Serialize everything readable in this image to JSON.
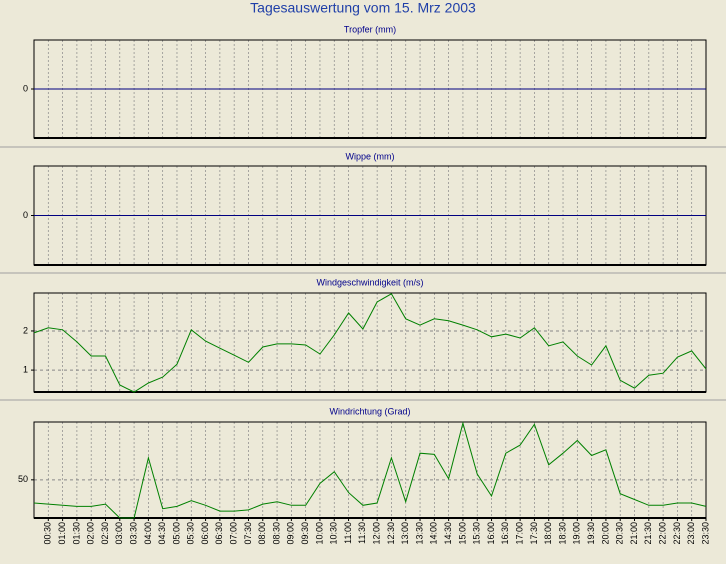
{
  "title": "Tagesauswertung vom 15. Mrz 2003",
  "chart_data": [
    {
      "type": "line",
      "title": "Tropfer (mm)",
      "color": "#000080",
      "ylim": [
        -1,
        1
      ],
      "yticks": [
        0
      ],
      "grid": true,
      "values": [
        0,
        0,
        0,
        0,
        0,
        0,
        0,
        0,
        0,
        0,
        0,
        0,
        0,
        0,
        0,
        0,
        0,
        0,
        0,
        0,
        0,
        0,
        0,
        0,
        0,
        0,
        0,
        0,
        0,
        0,
        0,
        0,
        0,
        0,
        0,
        0,
        0,
        0,
        0,
        0,
        0,
        0,
        0,
        0,
        0,
        0,
        0,
        0
      ]
    },
    {
      "type": "line",
      "title": "Wippe (mm)",
      "color": "#000080",
      "ylim": [
        -1,
        1
      ],
      "yticks": [
        0
      ],
      "grid": true,
      "values": [
        0,
        0,
        0,
        0,
        0,
        0,
        0,
        0,
        0,
        0,
        0,
        0,
        0,
        0,
        0,
        0,
        0,
        0,
        0,
        0,
        0,
        0,
        0,
        0,
        0,
        0,
        0,
        0,
        0,
        0,
        0,
        0,
        0,
        0,
        0,
        0,
        0,
        0,
        0,
        0,
        0,
        0,
        0,
        0,
        0,
        0,
        0,
        0
      ]
    },
    {
      "type": "line",
      "title": "Windgeschwindigkeit (m/s)",
      "color": "#008000",
      "ylim": [
        0.44,
        2.97
      ],
      "yticks": [
        1,
        2
      ],
      "grid": true,
      "values": [
        1.95,
        2.08,
        2.03,
        1.72,
        1.36,
        1.36,
        0.62,
        0.44,
        0.67,
        0.82,
        1.15,
        2.03,
        1.74,
        1.56,
        1.38,
        1.2,
        1.59,
        1.67,
        1.67,
        1.64,
        1.41,
        1.9,
        2.46,
        2.05,
        2.74,
        2.95,
        2.31,
        2.15,
        2.31,
        2.26,
        2.15,
        2.03,
        1.85,
        1.92,
        1.82,
        2.08,
        1.62,
        1.72,
        1.36,
        1.13,
        1.62,
        0.74,
        0.54,
        0.87,
        0.92,
        1.33,
        1.49,
        1.03
      ]
    },
    {
      "type": "line",
      "title": "Windrichtung (Grad)",
      "color": "#008000",
      "ylim": [
        17,
        100
      ],
      "yticks": [
        50
      ],
      "grid": true,
      "values": [
        30,
        29,
        28,
        27,
        27,
        29,
        17,
        17,
        69,
        25,
        27,
        32,
        28,
        23,
        23,
        24,
        29,
        31,
        28,
        28,
        47,
        57,
        39,
        28,
        30,
        69,
        31,
        73,
        72,
        51,
        99,
        55,
        36,
        73,
        80,
        98,
        63,
        73,
        84,
        71,
        76,
        38,
        33,
        28,
        28,
        30,
        30,
        27
      ],
      "categories": [
        null,
        "00:30",
        "01:00",
        "01:30",
        "02:00",
        "02:30",
        "03:00",
        "03:30",
        "04:00",
        "04:30",
        "05:00",
        "05:30",
        "06:00",
        "06:30",
        "07:00",
        "07:30",
        "08:00",
        "08:30",
        "09:00",
        "09:30",
        "10:00",
        "10:30",
        "11:00",
        "11:30",
        "12:00",
        "12:30",
        "13:00",
        "13:30",
        "14:00",
        "14:30",
        "15:00",
        "15:30",
        "16:00",
        "16:30",
        "17:00",
        "17:30",
        "18:00",
        "18:30",
        "19:00",
        "19:30",
        "20:00",
        "20:30",
        "21:00",
        "21:30",
        "22:00",
        "22:30",
        "23:00",
        "23:30"
      ]
    }
  ]
}
